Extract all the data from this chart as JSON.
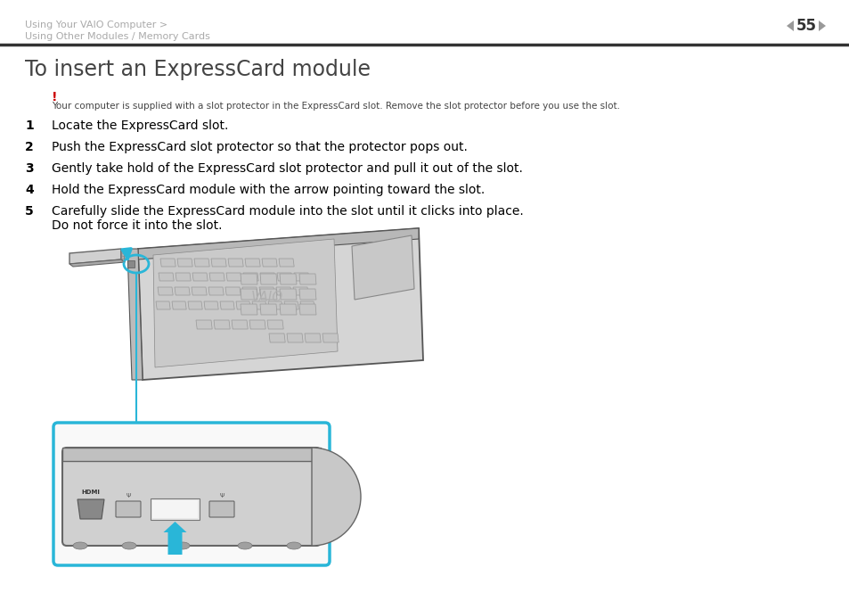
{
  "bg_color": "#ffffff",
  "header_breadcrumb_line1": "Using Your VAIO Computer >",
  "header_breadcrumb_line2": "Using Other Modules / Memory Cards",
  "page_number": "55",
  "header_line_color": "#000000",
  "title": "To insert an ExpressCard module",
  "warning_exclamation": "!",
  "warning_exclamation_color": "#cc0000",
  "warning_text": "Your computer is supplied with a slot protector in the ExpressCard slot. Remove the slot protector before you use the slot.",
  "steps": [
    {
      "num": "1",
      "text": "Locate the ExpressCard slot."
    },
    {
      "num": "2",
      "text": "Push the ExpressCard slot protector so that the protector pops out."
    },
    {
      "num": "3",
      "text": "Gently take hold of the ExpressCard slot protector and pull it out of the slot."
    },
    {
      "num": "4",
      "text": "Hold the ExpressCard module with the arrow pointing toward the slot."
    },
    {
      "num": "5",
      "text": "Carefully slide the ExpressCard module into the slot until it clicks into place.\nDo not force it into the slot."
    }
  ],
  "text_color": "#000000",
  "breadcrumb_color": "#aaaaaa",
  "title_color": "#444444",
  "step_num_color": "#000000",
  "cyan_color": "#29b6d8",
  "laptop_fill": "#d8d8d8",
  "laptop_edge": "#555555",
  "hdmi_label": "HDMI"
}
